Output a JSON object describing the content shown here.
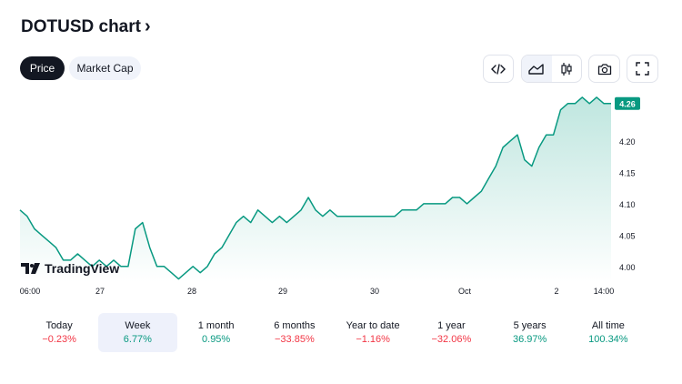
{
  "header": {
    "title": "DOTUSD chart",
    "chevron": "›"
  },
  "tabs": [
    {
      "label": "Price",
      "active": true
    },
    {
      "label": "Market Cap",
      "active": false
    }
  ],
  "toolbar": {
    "embed_icon": "code-icon",
    "area_icon": "area-chart-icon",
    "candle_icon": "candlestick-icon",
    "snapshot_icon": "camera-icon",
    "fullscreen_icon": "fullscreen-icon"
  },
  "watermark": "TradingView",
  "colors": {
    "line": "#089981",
    "area_top": "#bfe6df",
    "area_bottom": "#ffffff",
    "positive": "#089981",
    "negative": "#f23645",
    "label_bg": "#089981"
  },
  "chart_data": {
    "type": "area",
    "x_tick_labels": [
      "06:00",
      "27",
      "28",
      "29",
      "30",
      "Oct",
      "2",
      "14:00"
    ],
    "y_tick_labels": [
      "4.00",
      "4.05",
      "4.10",
      "4.15",
      "4.20"
    ],
    "y_ticks": [
      4.0,
      4.05,
      4.1,
      4.15,
      4.2
    ],
    "ylim": [
      3.975,
      4.28
    ],
    "last_price_label": "4.26",
    "last_price": 4.26,
    "series": [
      {
        "values": [
          4.09,
          4.08,
          4.06,
          4.05,
          4.04,
          4.03,
          4.01,
          4.01,
          4.02,
          4.01,
          4.0,
          4.01,
          4.0,
          4.01,
          4.0,
          4.0,
          4.06,
          4.07,
          4.03,
          4.0,
          4.0,
          3.99,
          3.98,
          3.99,
          4.0,
          3.99,
          4.0,
          4.02,
          4.03,
          4.05,
          4.07,
          4.08,
          4.07,
          4.09,
          4.08,
          4.07,
          4.08,
          4.07,
          4.08,
          4.09,
          4.11,
          4.09,
          4.08,
          4.09,
          4.08,
          4.08,
          4.08,
          4.08,
          4.08,
          4.08,
          4.08,
          4.08,
          4.08,
          4.09,
          4.09,
          4.09,
          4.1,
          4.1,
          4.1,
          4.1,
          4.11,
          4.11,
          4.1,
          4.11,
          4.12,
          4.14,
          4.16,
          4.19,
          4.2,
          4.21,
          4.17,
          4.16,
          4.19,
          4.21,
          4.21,
          4.25,
          4.26,
          4.26,
          4.27,
          4.26,
          4.27,
          4.26,
          4.26
        ]
      }
    ]
  },
  "periods": [
    {
      "label": "Today",
      "value": "−0.23%",
      "sign": "neg"
    },
    {
      "label": "Week",
      "value": "6.77%",
      "sign": "pos",
      "selected": true
    },
    {
      "label": "1 month",
      "value": "0.95%",
      "sign": "pos"
    },
    {
      "label": "6 months",
      "value": "−33.85%",
      "sign": "neg"
    },
    {
      "label": "Year to date",
      "value": "−1.16%",
      "sign": "neg"
    },
    {
      "label": "1 year",
      "value": "−32.06%",
      "sign": "neg"
    },
    {
      "label": "5 years",
      "value": "36.97%",
      "sign": "pos"
    },
    {
      "label": "All time",
      "value": "100.34%",
      "sign": "pos"
    }
  ]
}
